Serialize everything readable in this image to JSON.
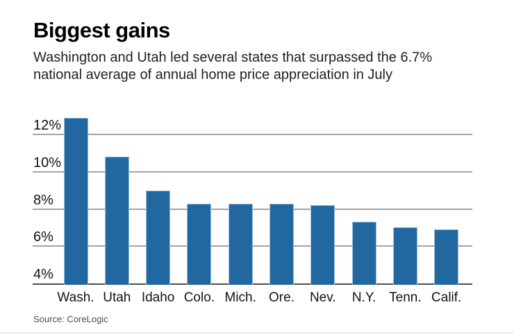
{
  "header": {
    "title": "Biggest gains",
    "subtitle_lines": [
      "Washington and Utah led several states that surpassed the 6.7%",
      "national average of annual home price appreciation in July"
    ]
  },
  "chart_data": {
    "type": "bar",
    "title": "Biggest gains",
    "subtitle": "Washington and Utah led several states that surpassed the 6.7% national average of annual home price appreciation in July",
    "categories": [
      "Wash.",
      "Utah",
      "Idaho",
      "Colo.",
      "Mich.",
      "Ore.",
      "Nev.",
      "N.Y.",
      "Tenn.",
      "Calif."
    ],
    "values": [
      12.9,
      10.8,
      9.0,
      8.3,
      8.3,
      8.3,
      8.2,
      7.3,
      7.0,
      6.9
    ],
    "value_unit": "%",
    "xlabel": "",
    "ylabel": "",
    "ylim": [
      4,
      13
    ],
    "yticks": [
      4,
      6,
      8,
      10,
      12
    ],
    "ytick_suffix": "%",
    "grid": true,
    "legend": false,
    "colors": {
      "bar_fill": "#20689f",
      "bar_edge": "#9cc0dd",
      "gridline": "#a3a3a3",
      "baseline": "#4d4d4d",
      "tick_text": "#111111"
    }
  },
  "footer": {
    "source": "Source: CoreLogic"
  }
}
